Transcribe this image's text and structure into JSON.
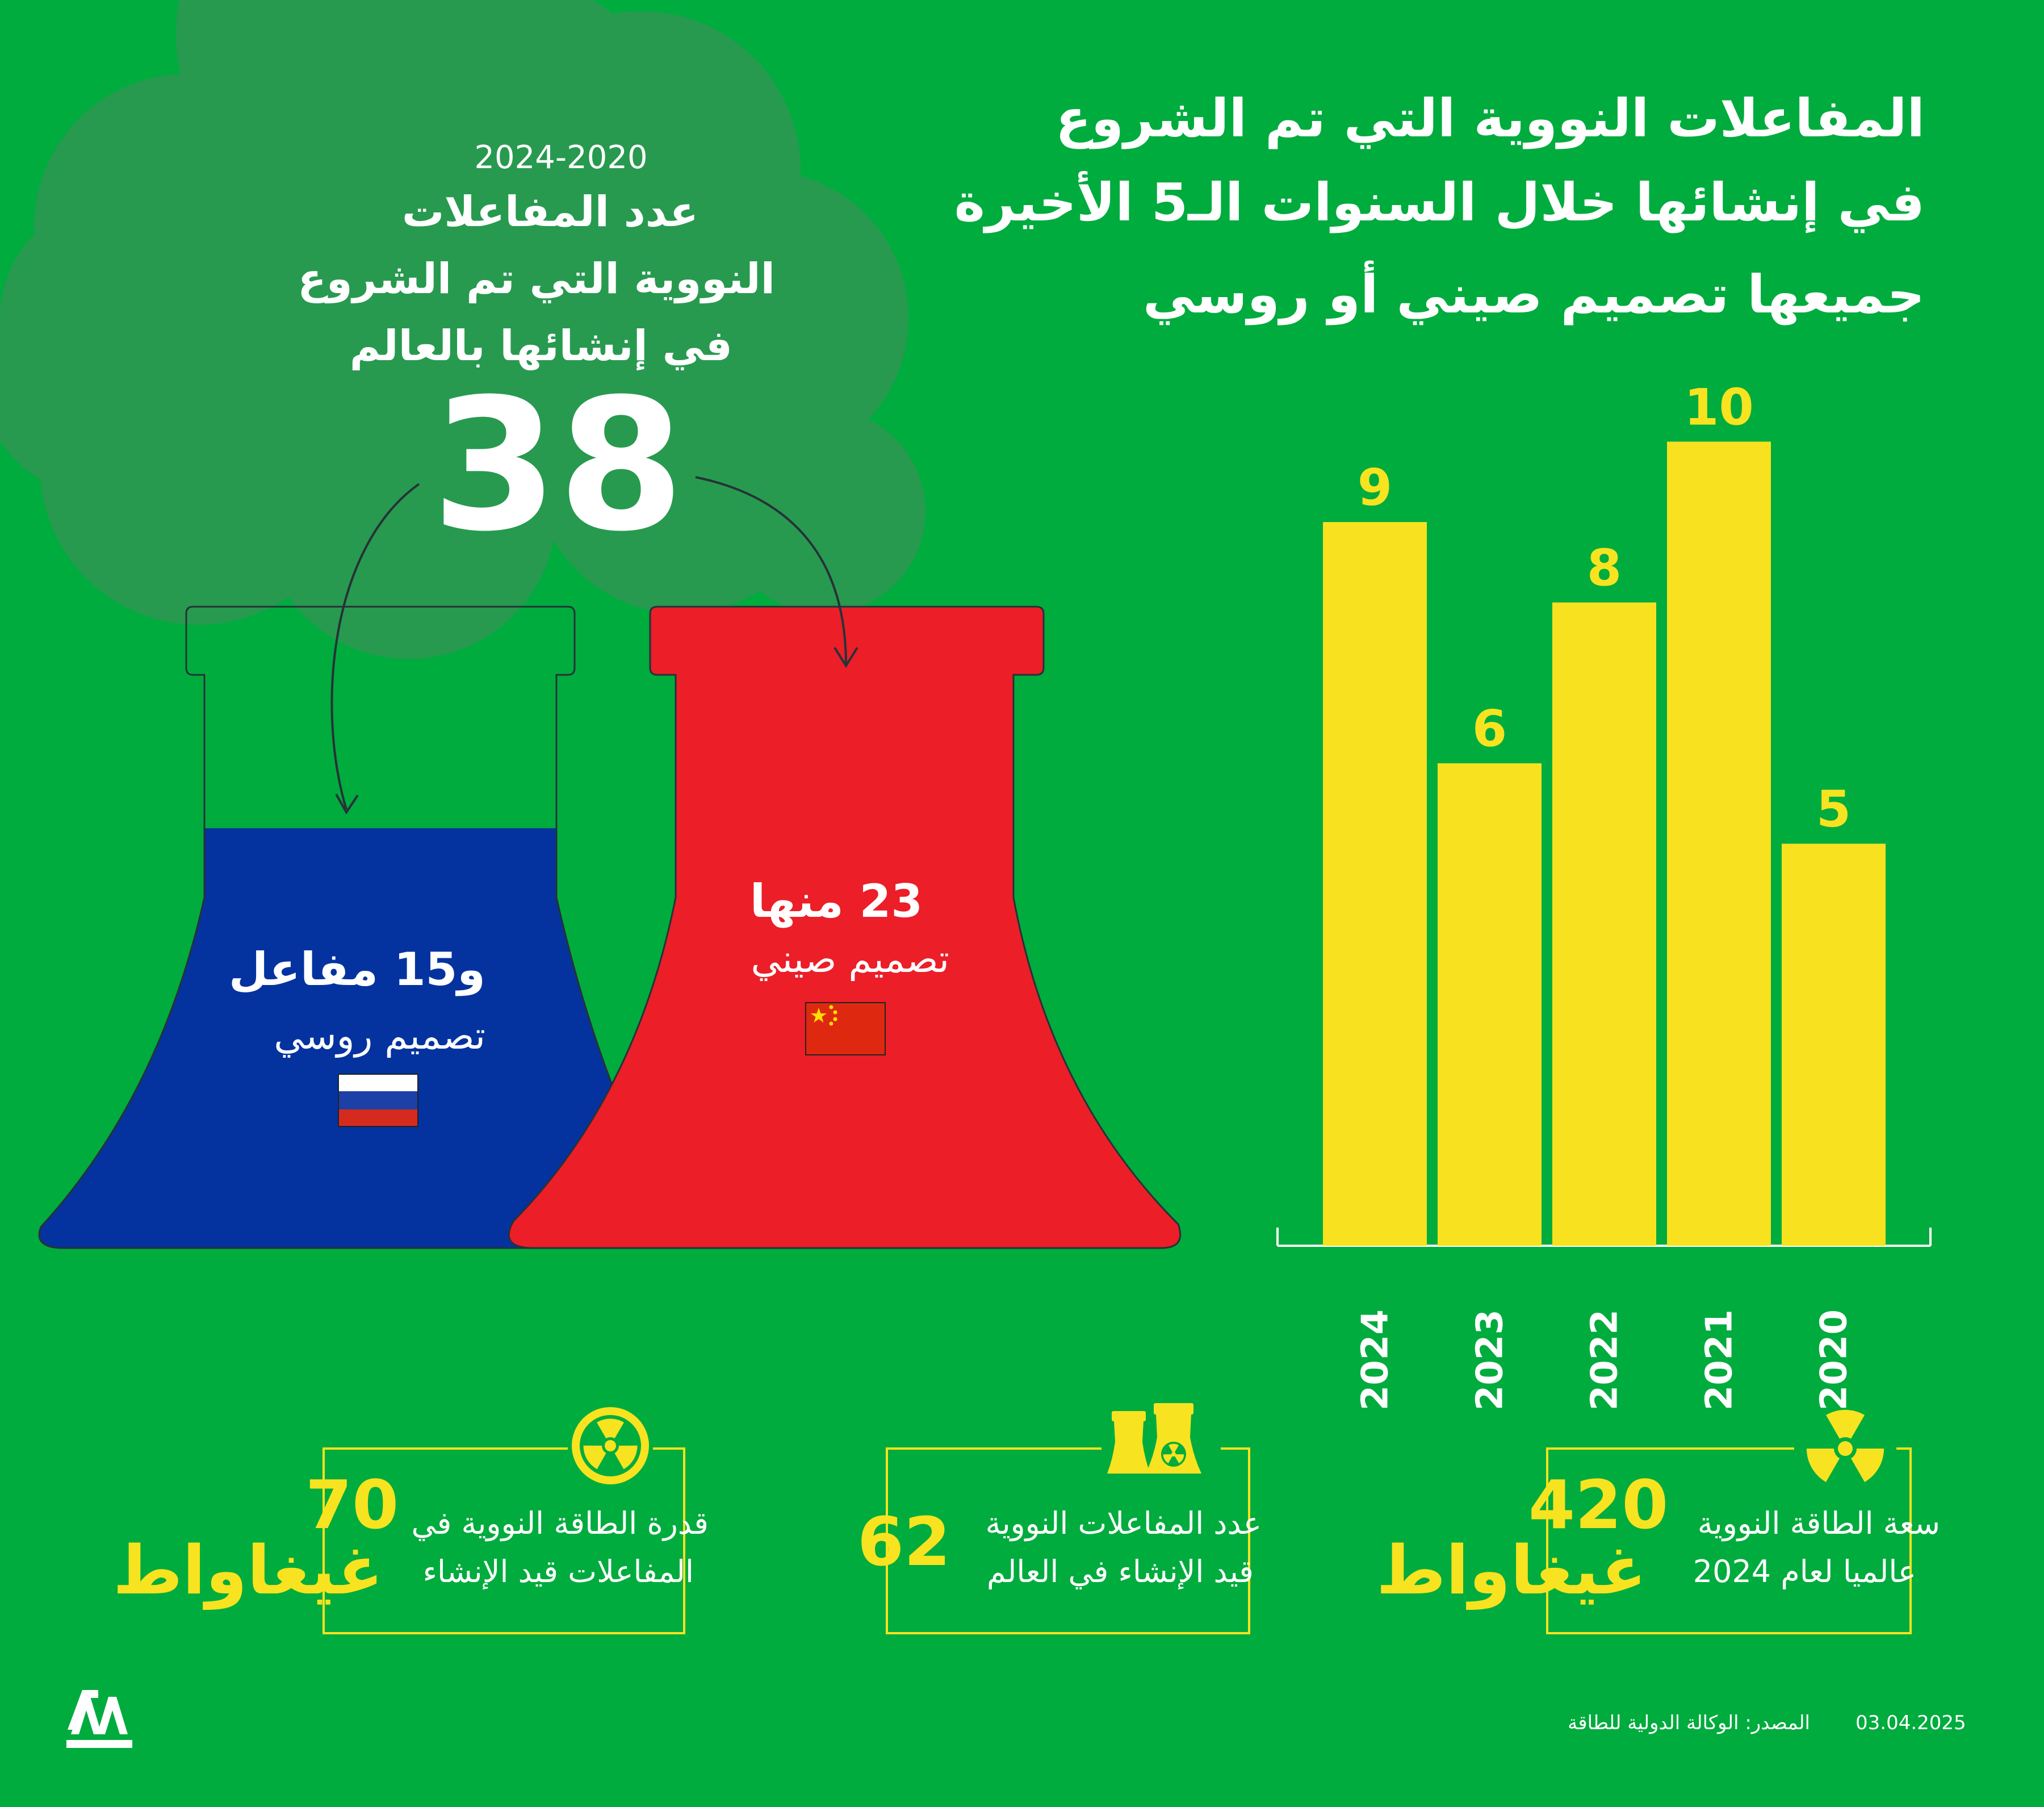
{
  "colors": {
    "background": "#00ac3e",
    "smoke": "#279a4f",
    "bar": "#f8e11f",
    "accent_yellow": "#f7e31f",
    "russia_blue": "#0433a0",
    "china_red": "#ec1e28",
    "text_white": "#ffffff"
  },
  "title": {
    "line1": "المفاعلات النووية التي تم الشروع",
    "line2": "في إنشائها خلال السنوات الـ5 الأخيرة",
    "line3": "جميعها تصميم صيني أو روسي"
  },
  "left_summary": {
    "years": "2024-2020",
    "line1": "عدد المفاعلات",
    "line2": "النووية التي تم الشروع",
    "line3": "في إنشائها بالعالم",
    "total": "38"
  },
  "russia": {
    "count_label": "و15 مفاعل",
    "design_label": "تصميم روسي",
    "flag": "russia-flag",
    "flag_colors": [
      "#ffffff",
      "#1c3fa8",
      "#d52b1e"
    ]
  },
  "china": {
    "count_label": "23 منها",
    "design_label": "تصميم صيني",
    "flag": "china-flag",
    "flag_colors": [
      "#de2910",
      "#ffde00"
    ]
  },
  "chart_data": {
    "type": "bar",
    "title": "المفاعلات النووية التي تم الشروع في إنشائها خلال السنوات الـ5 الأخيرة",
    "categories": [
      "2024",
      "2023",
      "2022",
      "2021",
      "2020"
    ],
    "values": [
      9,
      6,
      8,
      10,
      5
    ],
    "xlabel": "",
    "ylabel": "",
    "ylim": [
      0,
      10.3
    ],
    "grid": false,
    "legend": "none"
  },
  "stats": [
    {
      "id": "capacity-2024",
      "label_line1": "سعة الطاقة النووية",
      "label_line2": "عالميا لعام 2024",
      "value": "420",
      "unit": "غيغاواط",
      "icon": "radiation-icon"
    },
    {
      "id": "reactors-under-construction",
      "label_line1": "عدد المفاعلات النووية",
      "label_line2": "قيد الإنشاء في العالم",
      "value": "62",
      "unit": "",
      "icon": "cooling-tower-icon"
    },
    {
      "id": "capacity-under-construction",
      "label_line1": "قدرة الطاقة النووية في",
      "label_line2": "المفاعلات قيد الإنشاء",
      "value": "70",
      "unit": "غيغاواط",
      "icon": "radiation-circle-icon"
    }
  ],
  "footer": {
    "logo_text": "AA",
    "source": "المصدر: الوكالة الدولية للطاقة",
    "date": "03.04.2025"
  }
}
